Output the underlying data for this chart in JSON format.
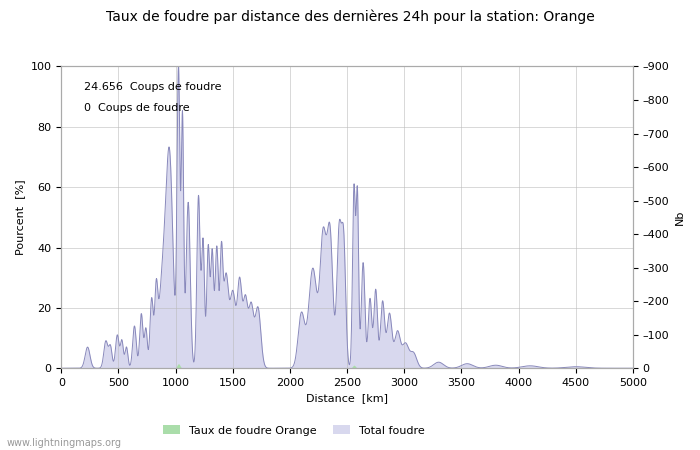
{
  "title": "Taux de foudre par distance des dernières 24h pour la station: Orange",
  "xlabel": "Distance  [km]",
  "ylabel_left": "Pourcent  [%]",
  "ylabel_right": "Nb",
  "annotation_line1": "24.656  Coups de foudre",
  "annotation_line2": "0  Coups de foudre",
  "legend_green": "Taux de foudre Orange",
  "legend_blue": "Total foudre",
  "watermark": "www.lightningmaps.org",
  "xlim": [
    0,
    5000
  ],
  "ylim_left": [
    0,
    100
  ],
  "ylim_right": [
    0,
    900
  ],
  "xticks": [
    0,
    500,
    1000,
    1500,
    2000,
    2500,
    3000,
    3500,
    4000,
    4500,
    5000
  ],
  "yticks_left": [
    0,
    20,
    40,
    60,
    80,
    100
  ],
  "yticks_right": [
    0,
    100,
    200,
    300,
    400,
    500,
    600,
    700,
    800,
    900
  ],
  "line_color": "#8888bb",
  "fill_color": "#d8d8ee",
  "green_fill_color": "#aaddaa",
  "background_color": "#ffffff",
  "grid_color": "#bbbbbb",
  "title_fontsize": 10,
  "label_fontsize": 8,
  "tick_fontsize": 8
}
